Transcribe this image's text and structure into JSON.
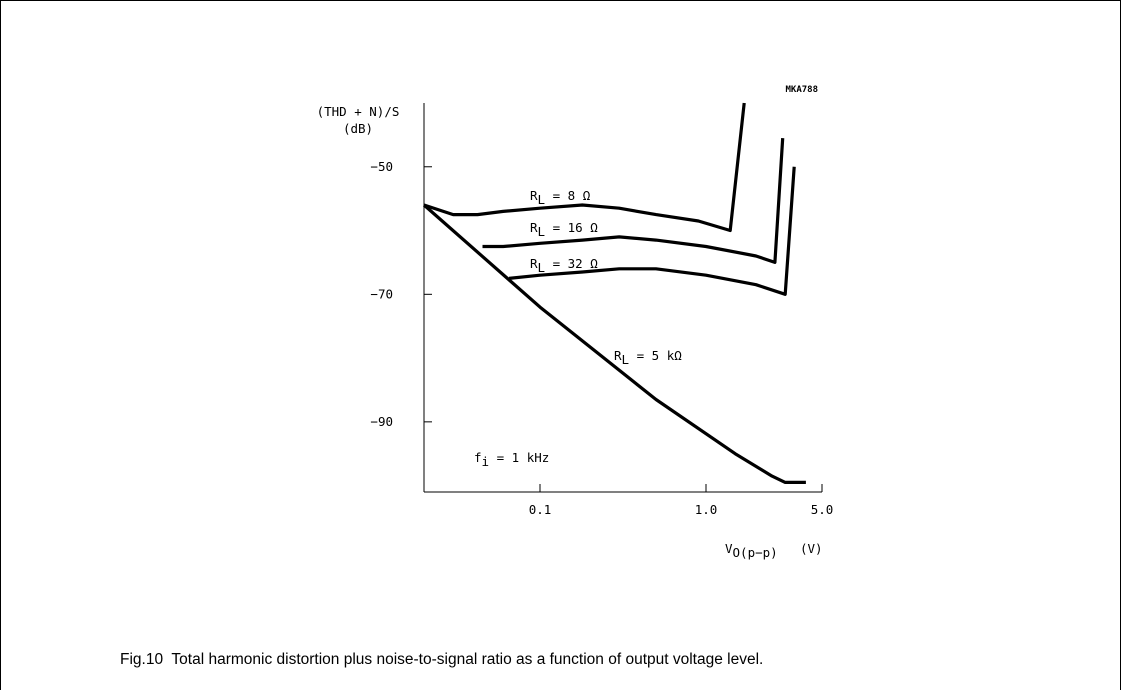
{
  "chart_data": {
    "type": "line",
    "code_label": "MKA788",
    "ylabel": "(THD + N)/S",
    "yunit": "(dB)",
    "xlabel": {
      "base": "V",
      "sub": "O(p−p)",
      "unit": "(V)"
    },
    "x_scale": "log",
    "xlim": [
      0.02,
      5
    ],
    "ylim": [
      -101,
      -40
    ],
    "yticks": [
      -50,
      -70,
      -90
    ],
    "ytick_labels": [
      "−50",
      "−70",
      "−90"
    ],
    "xticks": [
      0.1,
      1.0,
      5.0
    ],
    "xtick_labels": [
      "0.1",
      "1.0",
      "5.0"
    ],
    "series": [
      {
        "name": {
          "base": "R",
          "sub": "L",
          "rest": " = 8 Ω"
        },
        "points": [
          [
            0.02,
            -56
          ],
          [
            0.03,
            -57.5
          ],
          [
            0.042,
            -57.5
          ],
          [
            0.06,
            -57
          ],
          [
            0.1,
            -56.5
          ],
          [
            0.18,
            -56
          ],
          [
            0.3,
            -56.5
          ],
          [
            0.5,
            -57.5
          ],
          [
            0.9,
            -58.5
          ],
          [
            1.4,
            -60
          ],
          [
            1.7,
            -40
          ]
        ]
      },
      {
        "name": {
          "base": "R",
          "sub": "L",
          "rest": " = 16 Ω"
        },
        "points": [
          [
            0.045,
            -62.5
          ],
          [
            0.06,
            -62.5
          ],
          [
            0.1,
            -62
          ],
          [
            0.18,
            -61.5
          ],
          [
            0.3,
            -61
          ],
          [
            0.5,
            -61.5
          ],
          [
            1.0,
            -62.5
          ],
          [
            2.0,
            -64
          ],
          [
            2.6,
            -65
          ],
          [
            2.9,
            -45.5
          ]
        ]
      },
      {
        "name": {
          "base": "R",
          "sub": "L",
          "rest": " = 32 Ω"
        },
        "points": [
          [
            0.065,
            -67.5
          ],
          [
            0.1,
            -67
          ],
          [
            0.18,
            -66.5
          ],
          [
            0.3,
            -66
          ],
          [
            0.5,
            -66
          ],
          [
            1.0,
            -67
          ],
          [
            2.0,
            -68.5
          ],
          [
            3.0,
            -70
          ],
          [
            3.4,
            -50
          ]
        ]
      },
      {
        "name": {
          "base": "R",
          "sub": "L",
          "rest": " = 5 kΩ"
        },
        "points": [
          [
            0.02,
            -56
          ],
          [
            0.1,
            -72
          ],
          [
            0.5,
            -86.5
          ],
          [
            1.5,
            -95
          ],
          [
            2.5,
            -98.5
          ],
          [
            3.0,
            -99.5
          ],
          [
            4.0,
            -99.5
          ]
        ]
      }
    ],
    "annotation": {
      "base": "f",
      "sub": "i",
      "rest": " = 1 kHz"
    }
  },
  "caption": "Fig.10  Total harmonic distortion plus noise-to-signal ratio as a function of output voltage level."
}
